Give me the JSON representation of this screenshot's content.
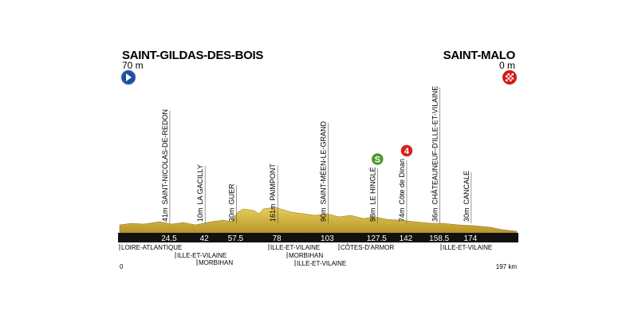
{
  "start": {
    "name": "SAINT-GILDAS-DES-BOIS",
    "altitude": "70 m"
  },
  "finish": {
    "name": "SAINT-MALO",
    "altitude": "0 m"
  },
  "start_km": 0,
  "distance": {
    "value": 197,
    "label": "197 km"
  },
  "waypoints": [
    {
      "km": 24.5,
      "altitude": "41m",
      "name": "SAINT-NICOLAS-DE-REDON"
    },
    {
      "km": 42,
      "altitude": "10m",
      "name": "LA GACILLY"
    },
    {
      "km": 57.5,
      "altitude": "30m",
      "name": "GUER"
    },
    {
      "km": 78,
      "altitude": "161m",
      "name": "PAIMPONT"
    },
    {
      "km": 103,
      "altitude": "90m",
      "name": "SAINT-MÉEN-LE-GRAND"
    },
    {
      "km": 127.5,
      "altitude": "98m",
      "name": "LE HINGLÉ",
      "icon": "S"
    },
    {
      "km": 142,
      "altitude": "74m",
      "name": "Côte de Dinan",
      "icon": "4"
    },
    {
      "km": 158.5,
      "altitude": "36m",
      "name": "CHÂTEAUNEUF-D'ILLE-ET-VILAINE"
    },
    {
      "km": 174,
      "altitude": "30m",
      "name": "CANCALE"
    }
  ],
  "regions": [
    "LOIRE-ATLANTIQUE",
    "ILLE-ET-VILAINE",
    "MORBIHAN",
    "ILLE-ET-VILAINE",
    "MORBIHAN",
    "ILLE-ET-VILAINE",
    "CÔTES-D'ARMOR",
    "ILLE-ET-VILAINE"
  ]
}
